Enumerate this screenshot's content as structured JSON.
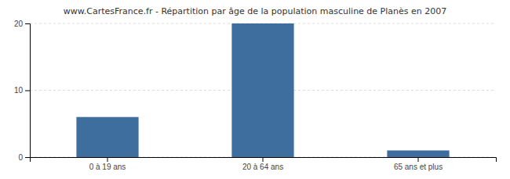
{
  "chart_data": {
    "type": "bar",
    "title": "www.CartesFrance.fr - Répartition par âge de la population masculine de Planès en 2007",
    "categories": [
      "0 à 19 ans",
      "20 à 64 ans",
      "65 ans et plus"
    ],
    "values": [
      6,
      20,
      1
    ],
    "color": "#3d6e9e",
    "ylim": [
      0,
      20
    ],
    "yticks": [
      0,
      10,
      20
    ],
    "grid": true
  }
}
